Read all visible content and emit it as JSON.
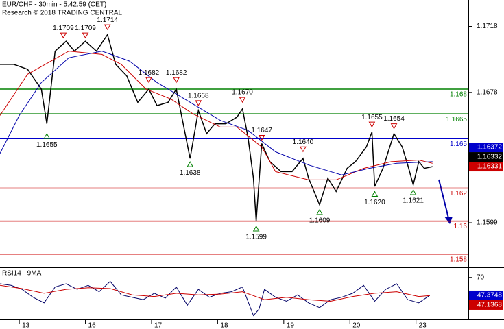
{
  "chart_data": [
    {
      "type": "line",
      "title": "EUR/CHF - 30min - 5:42:59 (CET)",
      "subtitle": "Research © 2018 TRADING CENTRAL",
      "xlim": [
        0,
        170
      ],
      "ylim": [
        1.1572,
        1.1734
      ],
      "yticks": [
        1.1718,
        1.1678,
        1.1599
      ],
      "series": [
        {
          "color": "#000000",
          "x": [
            0,
            5,
            10,
            15,
            17,
            20,
            24,
            27,
            31,
            35,
            39,
            42,
            46,
            50,
            54,
            57,
            61,
            64,
            66,
            69,
            72,
            75,
            78,
            82,
            86,
            88,
            90,
            92,
            93,
            95,
            98,
            102,
            106,
            110,
            112,
            116,
            119,
            122,
            126,
            129,
            133,
            135,
            136,
            139,
            143,
            146,
            148,
            150,
            152,
            154,
            157
          ],
          "values": [
            1.1695,
            1.1695,
            1.1692,
            1.168,
            1.1659,
            1.1703,
            1.1709,
            1.1703,
            1.1709,
            1.1703,
            1.1713,
            1.1695,
            1.1688,
            1.1672,
            1.168,
            1.167,
            1.1672,
            1.168,
            1.1663,
            1.1638,
            1.1667,
            1.1653,
            1.1659,
            1.1659,
            1.1663,
            1.1668,
            1.1651,
            1.1626,
            1.16,
            1.1647,
            1.1636,
            1.163,
            1.163,
            1.1638,
            1.1626,
            1.161,
            1.1626,
            1.1618,
            1.1632,
            1.1636,
            1.1645,
            1.1654,
            1.1621,
            1.1632,
            1.1653,
            1.1645,
            1.1634,
            1.1622,
            1.1636,
            1.1632,
            1.1633
          ]
        },
        {
          "color": "#cc0000",
          "x": [
            0,
            10,
            25,
            37,
            44,
            53,
            62,
            70,
            80,
            86,
            95,
            100,
            112,
            122,
            132,
            142,
            152,
            157
          ],
          "values": [
            1.1664,
            1.1689,
            1.1703,
            1.1701,
            1.1695,
            1.168,
            1.1674,
            1.1665,
            1.1657,
            1.1657,
            1.1645,
            1.163,
            1.1625,
            1.1625,
            1.1632,
            1.1636,
            1.1637,
            1.1635
          ]
        },
        {
          "color": "#0000aa",
          "x": [
            0,
            7,
            15,
            25,
            37,
            47,
            57,
            67,
            80,
            90,
            100,
            112,
            124,
            134,
            144,
            157
          ],
          "values": [
            1.1641,
            1.1664,
            1.1684,
            1.1699,
            1.1703,
            1.1697,
            1.1684,
            1.1674,
            1.1661,
            1.1655,
            1.1642,
            1.1634,
            1.1628,
            1.1632,
            1.1635,
            1.1636
          ]
        }
      ],
      "levels": [
        {
          "value": 1.168,
          "color": "#008000"
        },
        {
          "value": 1.1665,
          "color": "#008000"
        },
        {
          "value": 1.165,
          "color": "#0000cc"
        },
        {
          "value": 1.162,
          "color": "#cc0000"
        },
        {
          "value": 1.16,
          "color": "#cc0000"
        },
        {
          "value": 1.158,
          "color": "#cc0000"
        }
      ],
      "highs": [
        {
          "x": 23,
          "value": 1.1709
        },
        {
          "x": 31,
          "value": 1.1709
        },
        {
          "x": 39,
          "value": 1.1714
        },
        {
          "x": 54,
          "value": 1.1682
        },
        {
          "x": 64,
          "value": 1.1682
        },
        {
          "x": 72,
          "value": 1.1668
        },
        {
          "x": 88,
          "value": 1.167,
          "label": "1.1670"
        },
        {
          "x": 95,
          "value": 1.1647
        },
        {
          "x": 110,
          "value": 1.164,
          "label": "1.1640"
        },
        {
          "x": 135,
          "value": 1.1655
        },
        {
          "x": 143,
          "value": 1.1654
        }
      ],
      "lows": [
        {
          "x": 17,
          "value": 1.1655
        },
        {
          "x": 69,
          "value": 1.1638
        },
        {
          "x": 93,
          "value": 1.1599
        },
        {
          "x": 116,
          "value": 1.1609
        },
        {
          "x": 136,
          "value": 1.162,
          "label": "1.1620"
        },
        {
          "x": 150,
          "value": 1.1621
        }
      ],
      "price_boxes": [
        {
          "value": 1.16372,
          "color": "#0000cc"
        },
        {
          "value": 1.16332,
          "color": "#000000"
        },
        {
          "value": 1.16331,
          "color": "#cc0000"
        }
      ]
    },
    {
      "type": "line",
      "title": "RSI14 - 9MA",
      "xlim": [
        0,
        170
      ],
      "ylim": [
        18,
        81
      ],
      "yticks": [
        70
      ],
      "xticks": [
        {
          "value": 7,
          "label": "13"
        },
        {
          "value": 31,
          "label": "16"
        },
        {
          "value": 55,
          "label": "17"
        },
        {
          "value": 79,
          "label": "18"
        },
        {
          "value": 103,
          "label": "19"
        },
        {
          "value": 127,
          "label": "20"
        },
        {
          "value": 151,
          "label": "23"
        }
      ],
      "series": [
        {
          "color": "#000066",
          "x": [
            0,
            4,
            8,
            12,
            16,
            20,
            24,
            28,
            32,
            36,
            40,
            44,
            48,
            52,
            56,
            60,
            64,
            68,
            72,
            76,
            80,
            84,
            88,
            92,
            94,
            96,
            100,
            104,
            108,
            112,
            116,
            120,
            124,
            128,
            132,
            136,
            140,
            144,
            148,
            152,
            156
          ],
          "values": [
            62,
            60,
            55,
            45,
            38,
            58,
            62,
            55,
            60,
            52,
            65,
            48,
            45,
            42,
            50,
            44,
            58,
            35,
            55,
            45,
            50,
            52,
            58,
            22,
            30,
            55,
            45,
            40,
            48,
            38,
            32,
            42,
            45,
            50,
            60,
            40,
            55,
            62,
            42,
            38,
            47.4
          ]
        },
        {
          "color": "#cc0000",
          "x": [
            0,
            8,
            16,
            24,
            32,
            40,
            48,
            56,
            64,
            72,
            80,
            88,
            96,
            104,
            112,
            120,
            128,
            136,
            144,
            152,
            156
          ],
          "values": [
            60,
            56,
            50,
            55,
            57,
            56,
            48,
            46,
            50,
            48,
            49,
            52,
            42,
            45,
            42,
            40,
            46,
            50,
            52,
            46,
            47.1
          ]
        }
      ],
      "price_boxes": [
        {
          "value": 47.3748,
          "color": "#0000cc"
        },
        {
          "value": 47.1368,
          "color": "#cc0000"
        }
      ]
    }
  ]
}
